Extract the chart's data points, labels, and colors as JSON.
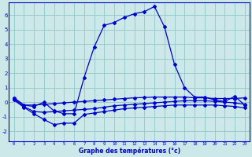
{
  "title": "Graphe des températures (°c)",
  "background_color": "#cce8e8",
  "grid_color": "#99cccc",
  "line_color": "#0000cc",
  "xlim": [
    -0.5,
    23.5
  ],
  "ylim": [
    -2.7,
    6.9
  ],
  "yticks": [
    -2,
    -1,
    0,
    1,
    2,
    3,
    4,
    5,
    6
  ],
  "xticks": [
    0,
    1,
    2,
    3,
    4,
    5,
    6,
    7,
    8,
    9,
    10,
    11,
    12,
    13,
    14,
    15,
    16,
    17,
    18,
    19,
    20,
    21,
    22,
    23
  ],
  "series_main_x": [
    0,
    1,
    2,
    3,
    4,
    5,
    6,
    7,
    8,
    9,
    10,
    11,
    12,
    13,
    14,
    15,
    16,
    17,
    18,
    19,
    20,
    21,
    22,
    23
  ],
  "series_main_y": [
    0.3,
    -0.2,
    -0.3,
    0.0,
    -0.6,
    -0.8,
    -0.8,
    1.7,
    3.8,
    5.3,
    5.5,
    5.85,
    6.1,
    6.25,
    6.6,
    5.2,
    2.6,
    1.0,
    0.35,
    0.35,
    0.15,
    0.05,
    0.4,
    -0.2
  ],
  "series_upper_x": [
    0,
    1,
    2,
    3,
    4,
    5,
    6,
    7,
    8,
    9,
    10,
    11,
    12,
    13,
    14,
    15,
    16,
    17,
    18,
    19,
    20,
    21,
    22,
    23
  ],
  "series_upper_y": [
    0.3,
    -0.2,
    -0.2,
    -0.15,
    -0.1,
    -0.05,
    0.0,
    0.05,
    0.1,
    0.15,
    0.2,
    0.25,
    0.3,
    0.32,
    0.35,
    0.35,
    0.35,
    0.35,
    0.3,
    0.3,
    0.25,
    0.25,
    0.25,
    0.3
  ],
  "series_mid_x": [
    0,
    1,
    2,
    3,
    4,
    5,
    6,
    7,
    8,
    9,
    10,
    11,
    12,
    13,
    14,
    15,
    16,
    17,
    18,
    19,
    20,
    21,
    22,
    23
  ],
  "series_mid_y": [
    0.2,
    -0.3,
    -0.65,
    -0.7,
    -0.65,
    -0.6,
    -0.55,
    -0.5,
    -0.45,
    -0.35,
    -0.25,
    -0.2,
    -0.15,
    -0.1,
    -0.05,
    0.0,
    0.05,
    0.1,
    0.1,
    0.1,
    0.05,
    0.0,
    -0.05,
    -0.15
  ],
  "series_lower_x": [
    0,
    1,
    2,
    3,
    4,
    5,
    6,
    7,
    8,
    9,
    10,
    11,
    12,
    13,
    14,
    15,
    16,
    17,
    18,
    19,
    20,
    21,
    22,
    23
  ],
  "series_lower_y": [
    0.15,
    -0.35,
    -0.8,
    -1.2,
    -1.55,
    -1.45,
    -1.45,
    -0.85,
    -0.75,
    -0.65,
    -0.55,
    -0.45,
    -0.4,
    -0.35,
    -0.3,
    -0.25,
    -0.2,
    -0.2,
    -0.2,
    -0.2,
    -0.2,
    -0.25,
    -0.3,
    -0.4
  ]
}
